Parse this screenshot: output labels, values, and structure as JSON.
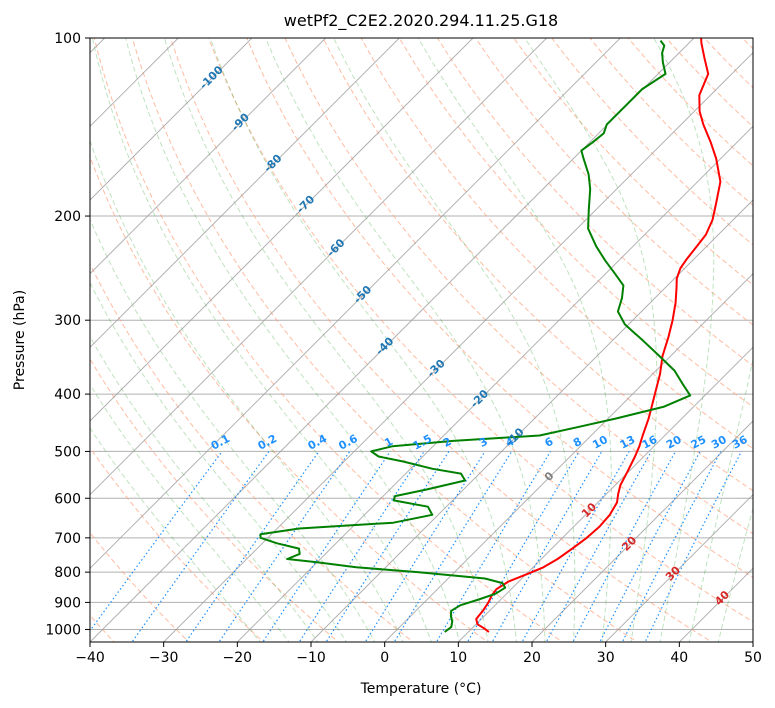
{
  "chart_data": {
    "type": "line",
    "diagram": "skew-T log-P",
    "title": "wetPf2_C2E2.2020.294.11.25.G18",
    "xlabel": "Temperature (°C)",
    "ylabel": "Pressure (hPa)",
    "xlim": [
      -40,
      50
    ],
    "ylim": [
      1050,
      100
    ],
    "y_scale": "log",
    "grid": true,
    "x_ticks": [
      "−40",
      "−30",
      "−20",
      "−10",
      "0",
      "10",
      "20",
      "30",
      "40",
      "50"
    ],
    "y_ticks": [
      "100",
      "200",
      "300",
      "400",
      "500",
      "600",
      "700",
      "800",
      "900",
      "1000"
    ],
    "series": [
      {
        "role": "temperature",
        "color": "#ff0000",
        "points": [
          [
            1010,
            12.8
          ],
          [
            995,
            11.6
          ],
          [
            980,
            10.2
          ],
          [
            960,
            9.3
          ],
          [
            930,
            9.1
          ],
          [
            900,
            8.7
          ],
          [
            875,
            8.2
          ],
          [
            855,
            8.0
          ],
          [
            830,
            8.6
          ],
          [
            805,
            10.2
          ],
          [
            785,
            11.4
          ],
          [
            760,
            12.2
          ],
          [
            730,
            12.8
          ],
          [
            700,
            13.3
          ],
          [
            670,
            13.5
          ],
          [
            640,
            13.3
          ],
          [
            610,
            12.6
          ],
          [
            590,
            11.6
          ],
          [
            570,
            10.7
          ],
          [
            540,
            9.8
          ],
          [
            510,
            8.8
          ],
          [
            490,
            8.0
          ],
          [
            470,
            7.0
          ],
          [
            440,
            5.5
          ],
          [
            420,
            4.3
          ],
          [
            395,
            2.7
          ],
          [
            370,
            1.0
          ],
          [
            345,
            -1.1
          ],
          [
            320,
            -2.9
          ],
          [
            300,
            -4.6
          ],
          [
            280,
            -6.6
          ],
          [
            265,
            -8.4
          ],
          [
            255,
            -9.7
          ],
          [
            245,
            -10.6
          ],
          [
            236,
            -11.0
          ],
          [
            226,
            -11.3
          ],
          [
            215,
            -11.7
          ],
          [
            203,
            -12.8
          ],
          [
            190,
            -14.6
          ],
          [
            175,
            -16.9
          ],
          [
            160,
            -20.6
          ],
          [
            150,
            -23.6
          ],
          [
            140,
            -27.0
          ],
          [
            133,
            -29.3
          ],
          [
            125,
            -31.5
          ],
          [
            115,
            -33.2
          ],
          [
            108,
            -35.9
          ],
          [
            102,
            -38.3
          ],
          [
            99,
            -39.4
          ]
        ]
      },
      {
        "role": "dewpoint",
        "color": "#008000",
        "points": [
          [
            1010,
            6.8
          ],
          [
            990,
            7.0
          ],
          [
            970,
            6.4
          ],
          [
            950,
            5.5
          ],
          [
            930,
            4.8
          ],
          [
            910,
            5.3
          ],
          [
            890,
            7.0
          ],
          [
            870,
            8.5
          ],
          [
            850,
            9.0
          ],
          [
            835,
            8.0
          ],
          [
            820,
            5.0
          ],
          [
            800,
            -5.0
          ],
          [
            785,
            -14.0
          ],
          [
            770,
            -20.0
          ],
          [
            760,
            -24.5
          ],
          [
            745,
            -23.5
          ],
          [
            730,
            -24.3
          ],
          [
            715,
            -28.0
          ],
          [
            700,
            -31.0
          ],
          [
            690,
            -31.5
          ],
          [
            675,
            -27.0
          ],
          [
            660,
            -15.0
          ],
          [
            640,
            -10.8
          ],
          [
            620,
            -12.5
          ],
          [
            605,
            -18.0
          ],
          [
            595,
            -18.4
          ],
          [
            580,
            -15.0
          ],
          [
            560,
            -11.0
          ],
          [
            545,
            -12.5
          ],
          [
            535,
            -17.0
          ],
          [
            520,
            -22.0
          ],
          [
            510,
            -26.0
          ],
          [
            500,
            -27.7
          ],
          [
            490,
            -25.5
          ],
          [
            480,
            -18.0
          ],
          [
            470,
            -7.0
          ],
          [
            455,
            -3.0
          ],
          [
            440,
            1.0
          ],
          [
            420,
            6.0
          ],
          [
            402,
            8.0
          ],
          [
            385,
            5.5
          ],
          [
            365,
            2.5
          ],
          [
            345,
            -1.5
          ],
          [
            325,
            -5.8
          ],
          [
            305,
            -10.5
          ],
          [
            290,
            -13.2
          ],
          [
            275,
            -14.5
          ],
          [
            262,
            -16.0
          ],
          [
            250,
            -18.8
          ],
          [
            238,
            -21.8
          ],
          [
            225,
            -25.0
          ],
          [
            210,
            -28.5
          ],
          [
            195,
            -31.0
          ],
          [
            180,
            -33.6
          ],
          [
            170,
            -35.8
          ],
          [
            160,
            -38.6
          ],
          [
            155,
            -40.0
          ],
          [
            150,
            -39.6
          ],
          [
            145,
            -39.3
          ],
          [
            140,
            -40.1
          ],
          [
            130,
            -40.1
          ],
          [
            122,
            -40.1
          ],
          [
            115,
            -39.0
          ],
          [
            110,
            -40.9
          ],
          [
            106,
            -42.3
          ],
          [
            103,
            -43.0
          ],
          [
            101,
            -44.2
          ]
        ]
      }
    ],
    "isotherm_labels": [
      {
        "text": "-100",
        "color": "#1f77b4"
      },
      {
        "text": "-90",
        "color": "#1f77b4"
      },
      {
        "text": "-80",
        "color": "#1f77b4"
      },
      {
        "text": "-70",
        "color": "#1f77b4"
      },
      {
        "text": "-60",
        "color": "#1f77b4"
      },
      {
        "text": "-50",
        "color": "#1f77b4"
      },
      {
        "text": "-40",
        "color": "#1f77b4"
      },
      {
        "text": "-30",
        "color": "#1f77b4"
      },
      {
        "text": "-20",
        "color": "#1f77b4"
      },
      {
        "text": "-10",
        "color": "#1f77b4"
      },
      {
        "text": "0",
        "color": "#808080"
      },
      {
        "text": "10",
        "color": "#d62728"
      },
      {
        "text": "20",
        "color": "#d62728"
      },
      {
        "text": "30",
        "color": "#d62728"
      },
      {
        "text": "40",
        "color": "#d62728"
      }
    ],
    "mixing_ratio_labels": [
      "0.1",
      "0.2",
      "0.4",
      "0.6",
      "1",
      "1.5",
      "2",
      "3",
      "4",
      "6",
      "8",
      "10",
      "13",
      "16",
      "20",
      "25",
      "30",
      "36"
    ],
    "mixing_ratio_color": "#1e90ff"
  }
}
